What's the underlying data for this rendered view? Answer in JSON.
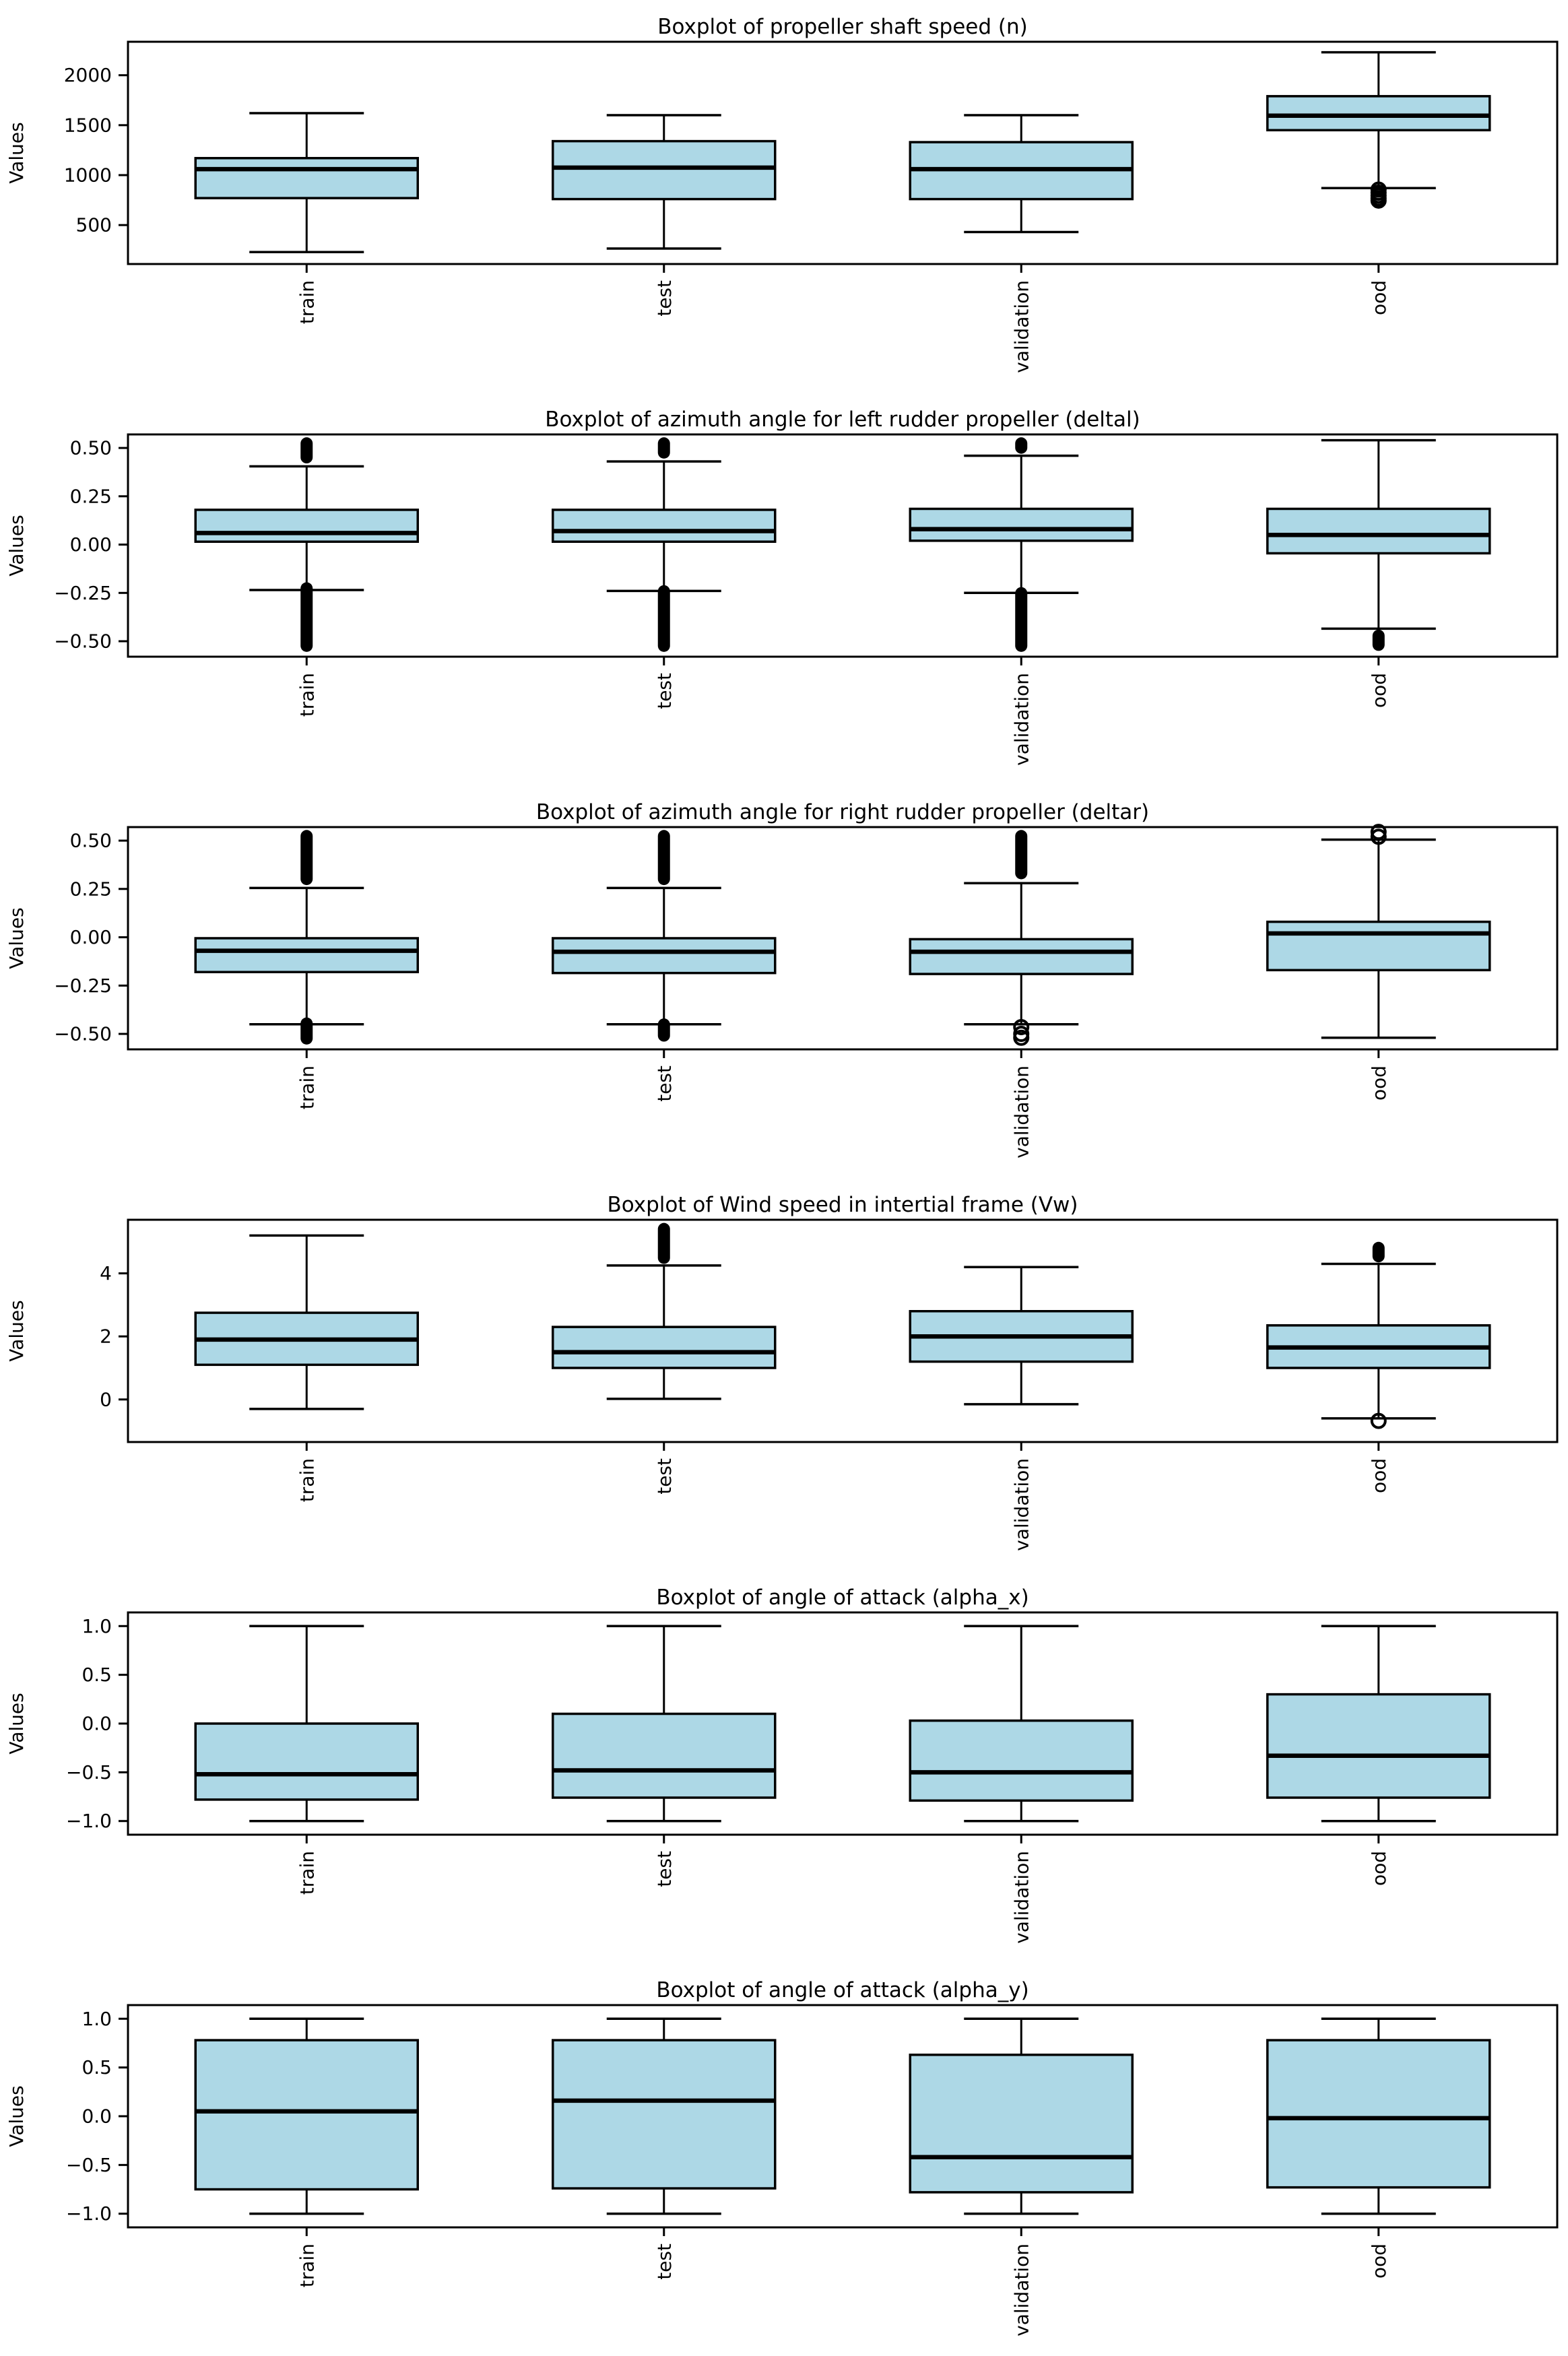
{
  "page": {
    "background": "#ffffff"
  },
  "figure": {
    "ylabel": "Values",
    "categories": [
      "train",
      "test",
      "validation",
      "ood"
    ],
    "box_fill_color": "#add8e6",
    "line_color": "#000000"
  },
  "chart_data": [
    {
      "type": "box",
      "title": "Boxplot of propeller shaft speed (n)",
      "ylabel": "Values",
      "categories": [
        "train",
        "test",
        "validation",
        "ood"
      ],
      "ylim": [
        110,
        2335
      ],
      "yticks": [
        {
          "value": 500,
          "label": "500"
        },
        {
          "value": 1000,
          "label": "1000"
        },
        {
          "value": 1500,
          "label": "1500"
        },
        {
          "value": 2000,
          "label": "2000"
        }
      ],
      "boxes": [
        {
          "category": "train",
          "whislo": 230,
          "q1": 770,
          "med": 1060,
          "q3": 1170,
          "whishi": 1620
        },
        {
          "category": "test",
          "whislo": 265,
          "q1": 760,
          "med": 1075,
          "q3": 1340,
          "whishi": 1600
        },
        {
          "category": "validation",
          "whislo": 430,
          "q1": 760,
          "med": 1060,
          "q3": 1330,
          "whishi": 1600
        },
        {
          "category": "ood",
          "whislo": 870,
          "q1": 1450,
          "med": 1595,
          "q3": 1790,
          "whishi": 2230,
          "outliers_below": {
            "style": "circles",
            "values": [
              745,
              768,
              795,
              825,
              855
            ]
          }
        }
      ]
    },
    {
      "type": "box",
      "title": "Boxplot of azimuth angle for left rudder propeller (deltal)",
      "ylabel": "Values",
      "categories": [
        "train",
        "test",
        "validation",
        "ood"
      ],
      "ylim": [
        -0.58,
        0.57
      ],
      "yticks": [
        {
          "value": -0.5,
          "label": "−0.50"
        },
        {
          "value": -0.25,
          "label": "−0.25"
        },
        {
          "value": 0.0,
          "label": "0.00"
        },
        {
          "value": 0.25,
          "label": "0.25"
        },
        {
          "value": 0.5,
          "label": "0.50"
        }
      ],
      "boxes": [
        {
          "category": "train",
          "whislo": -0.235,
          "q1": 0.015,
          "med": 0.06,
          "q3": 0.18,
          "whishi": 0.405,
          "outliers_above": {
            "style": "dense",
            "min": 0.42,
            "max": 0.555
          },
          "outliers_below": {
            "style": "dense",
            "min": -0.555,
            "max": -0.195
          }
        },
        {
          "category": "test",
          "whislo": -0.24,
          "q1": 0.015,
          "med": 0.07,
          "q3": 0.18,
          "whishi": 0.43,
          "outliers_above": {
            "style": "dense",
            "min": 0.445,
            "max": 0.555
          },
          "outliers_below": {
            "style": "dense",
            "min": -0.555,
            "max": -0.21
          }
        },
        {
          "category": "validation",
          "whislo": -0.25,
          "q1": 0.02,
          "med": 0.08,
          "q3": 0.185,
          "whishi": 0.46,
          "outliers_above": {
            "style": "dense",
            "min": 0.47,
            "max": 0.555
          },
          "outliers_below": {
            "style": "dense",
            "min": -0.555,
            "max": -0.22
          }
        },
        {
          "category": "ood",
          "whislo": -0.435,
          "q1": -0.045,
          "med": 0.05,
          "q3": 0.185,
          "whishi": 0.54,
          "outliers_below": {
            "style": "dense",
            "min": -0.55,
            "max": -0.44
          }
        }
      ]
    },
    {
      "type": "box",
      "title": "Boxplot of azimuth angle for right rudder propeller (deltar)",
      "ylabel": "Values",
      "categories": [
        "train",
        "test",
        "validation",
        "ood"
      ],
      "ylim": [
        -0.58,
        0.57
      ],
      "yticks": [
        {
          "value": -0.5,
          "label": "−0.50"
        },
        {
          "value": -0.25,
          "label": "−0.25"
        },
        {
          "value": 0.0,
          "label": "0.00"
        },
        {
          "value": 0.25,
          "label": "0.25"
        },
        {
          "value": 0.5,
          "label": "0.50"
        }
      ],
      "boxes": [
        {
          "category": "train",
          "whislo": -0.45,
          "q1": -0.18,
          "med": -0.07,
          "q3": -0.005,
          "whishi": 0.255,
          "outliers_above": {
            "style": "dense",
            "min": 0.27,
            "max": 0.555
          },
          "outliers_below": {
            "style": "dense",
            "min": -0.555,
            "max": -0.415
          }
        },
        {
          "category": "test",
          "whislo": -0.45,
          "q1": -0.185,
          "med": -0.075,
          "q3": -0.005,
          "whishi": 0.255,
          "outliers_above": {
            "style": "dense",
            "min": 0.27,
            "max": 0.555
          },
          "outliers_below": {
            "style": "dense",
            "min": -0.54,
            "max": -0.42
          }
        },
        {
          "category": "validation",
          "whislo": -0.45,
          "q1": -0.19,
          "med": -0.075,
          "q3": -0.01,
          "whishi": 0.28,
          "outliers_above": {
            "style": "dense",
            "min": 0.3,
            "max": 0.555
          },
          "outliers_below": {
            "style": "circles",
            "values": [
              -0.465,
              -0.5,
              -0.52
            ]
          }
        },
        {
          "category": "ood",
          "whislo": -0.52,
          "q1": -0.17,
          "med": 0.02,
          "q3": 0.08,
          "whishi": 0.505,
          "outliers_above": {
            "style": "circles",
            "values": [
              0.52,
              0.545
            ]
          }
        }
      ]
    },
    {
      "type": "box",
      "title": "Boxplot of Wind speed in intertial frame (Vw)",
      "ylabel": "Values",
      "categories": [
        "train",
        "test",
        "validation",
        "ood"
      ],
      "ylim": [
        -1.35,
        5.7
      ],
      "yticks": [
        {
          "value": 0,
          "label": "0"
        },
        {
          "value": 2,
          "label": "2"
        },
        {
          "value": 4,
          "label": "4"
        }
      ],
      "boxes": [
        {
          "category": "train",
          "whislo": -0.3,
          "q1": 1.1,
          "med": 1.9,
          "q3": 2.75,
          "whishi": 5.2
        },
        {
          "category": "test",
          "whislo": 0.02,
          "q1": 1.0,
          "med": 1.5,
          "q3": 2.3,
          "whishi": 4.25,
          "outliers_above": {
            "style": "dense",
            "min": 4.3,
            "max": 5.6
          }
        },
        {
          "category": "validation",
          "whislo": -0.15,
          "q1": 1.2,
          "med": 2.0,
          "q3": 2.8,
          "whishi": 4.2
        },
        {
          "category": "ood",
          "whislo": -0.6,
          "q1": 1.0,
          "med": 1.65,
          "q3": 2.35,
          "whishi": 4.3,
          "outliers_above": {
            "style": "dense",
            "min": 4.35,
            "max": 5.0
          },
          "outliers_below": {
            "style": "circles",
            "values": [
              -0.68
            ]
          }
        }
      ]
    },
    {
      "type": "box",
      "title": "Boxplot of angle of attack (alpha_x)",
      "ylabel": "Values",
      "categories": [
        "train",
        "test",
        "validation",
        "ood"
      ],
      "ylim": [
        -1.14,
        1.14
      ],
      "yticks": [
        {
          "value": -1.0,
          "label": "−1.0"
        },
        {
          "value": -0.5,
          "label": "−0.5"
        },
        {
          "value": 0.0,
          "label": "0.0"
        },
        {
          "value": 0.5,
          "label": "0.5"
        },
        {
          "value": 1.0,
          "label": "1.0"
        }
      ],
      "boxes": [
        {
          "category": "train",
          "whislo": -1.0,
          "q1": -0.78,
          "med": -0.52,
          "q3": 0.0,
          "whishi": 1.0
        },
        {
          "category": "test",
          "whislo": -1.0,
          "q1": -0.76,
          "med": -0.48,
          "q3": 0.1,
          "whishi": 1.0
        },
        {
          "category": "validation",
          "whislo": -1.0,
          "q1": -0.79,
          "med": -0.5,
          "q3": 0.03,
          "whishi": 1.0
        },
        {
          "category": "ood",
          "whislo": -1.0,
          "q1": -0.76,
          "med": -0.33,
          "q3": 0.3,
          "whishi": 1.0
        }
      ]
    },
    {
      "type": "box",
      "title": "Boxplot of angle of attack (alpha_y)",
      "ylabel": "Values",
      "categories": [
        "train",
        "test",
        "validation",
        "ood"
      ],
      "ylim": [
        -1.14,
        1.14
      ],
      "yticks": [
        {
          "value": -1.0,
          "label": "−1.0"
        },
        {
          "value": -0.5,
          "label": "−0.5"
        },
        {
          "value": 0.0,
          "label": "0.0"
        },
        {
          "value": 0.5,
          "label": "0.5"
        },
        {
          "value": 1.0,
          "label": "1.0"
        }
      ],
      "boxes": [
        {
          "category": "train",
          "whislo": -1.0,
          "q1": -0.75,
          "med": 0.05,
          "q3": 0.78,
          "whishi": 1.0
        },
        {
          "category": "test",
          "whislo": -1.0,
          "q1": -0.74,
          "med": 0.16,
          "q3": 0.78,
          "whishi": 1.0
        },
        {
          "category": "validation",
          "whislo": -1.0,
          "q1": -0.78,
          "med": -0.42,
          "q3": 0.63,
          "whishi": 1.0
        },
        {
          "category": "ood",
          "whislo": -1.0,
          "q1": -0.73,
          "med": -0.02,
          "q3": 0.78,
          "whishi": 1.0
        }
      ]
    }
  ]
}
